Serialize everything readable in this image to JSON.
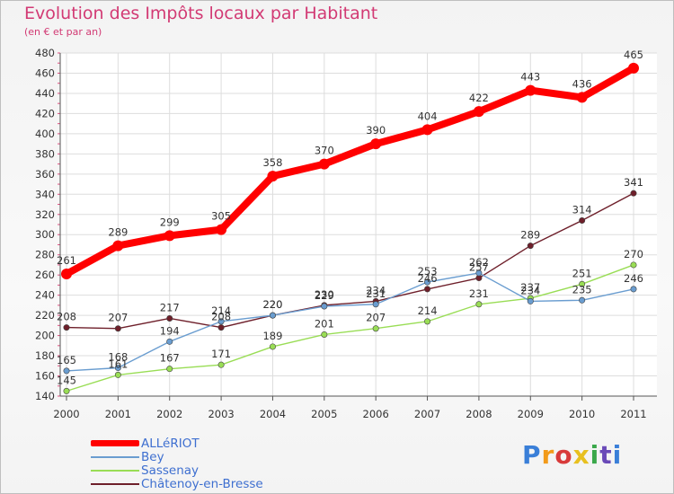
{
  "chart_data": {
    "type": "line",
    "title": "Evolution des Impôts locaux par Habitant",
    "subtitle": "(en € et par an)",
    "xlabel": "",
    "ylabel": "",
    "categories": [
      "2000",
      "2001",
      "2002",
      "2003",
      "2004",
      "2005",
      "2006",
      "2007",
      "2008",
      "2009",
      "2010",
      "2011"
    ],
    "ylim": [
      140,
      480
    ],
    "yticks": [
      140,
      160,
      180,
      200,
      220,
      240,
      260,
      280,
      300,
      320,
      340,
      360,
      380,
      400,
      420,
      440,
      460,
      480
    ],
    "grid": true,
    "legend_position": "bottom-left",
    "series": [
      {
        "name": "ALLéRIOT",
        "color": "#ff0000",
        "values": [
          261,
          289,
          299,
          305,
          358,
          370,
          390,
          404,
          422,
          443,
          436,
          465
        ]
      },
      {
        "name": "Bey",
        "color": "#6a9dd0",
        "values": [
          165,
          168,
          194,
          214,
          220,
          229,
          231,
          253,
          262,
          234,
          235,
          246
        ]
      },
      {
        "name": "Sassenay",
        "color": "#99dd55",
        "values": [
          145,
          161,
          167,
          171,
          189,
          201,
          207,
          214,
          231,
          237,
          251,
          270
        ]
      },
      {
        "name": "Châtenoy-en-Bresse",
        "color": "#6e1f2a",
        "values": [
          208,
          207,
          217,
          208,
          220,
          230,
          234,
          246,
          257,
          289,
          314,
          341
        ]
      }
    ]
  },
  "logo": {
    "text": "Proxiti",
    "letters": [
      "P",
      "r",
      "o",
      "x",
      "i",
      "t",
      "i"
    ]
  }
}
